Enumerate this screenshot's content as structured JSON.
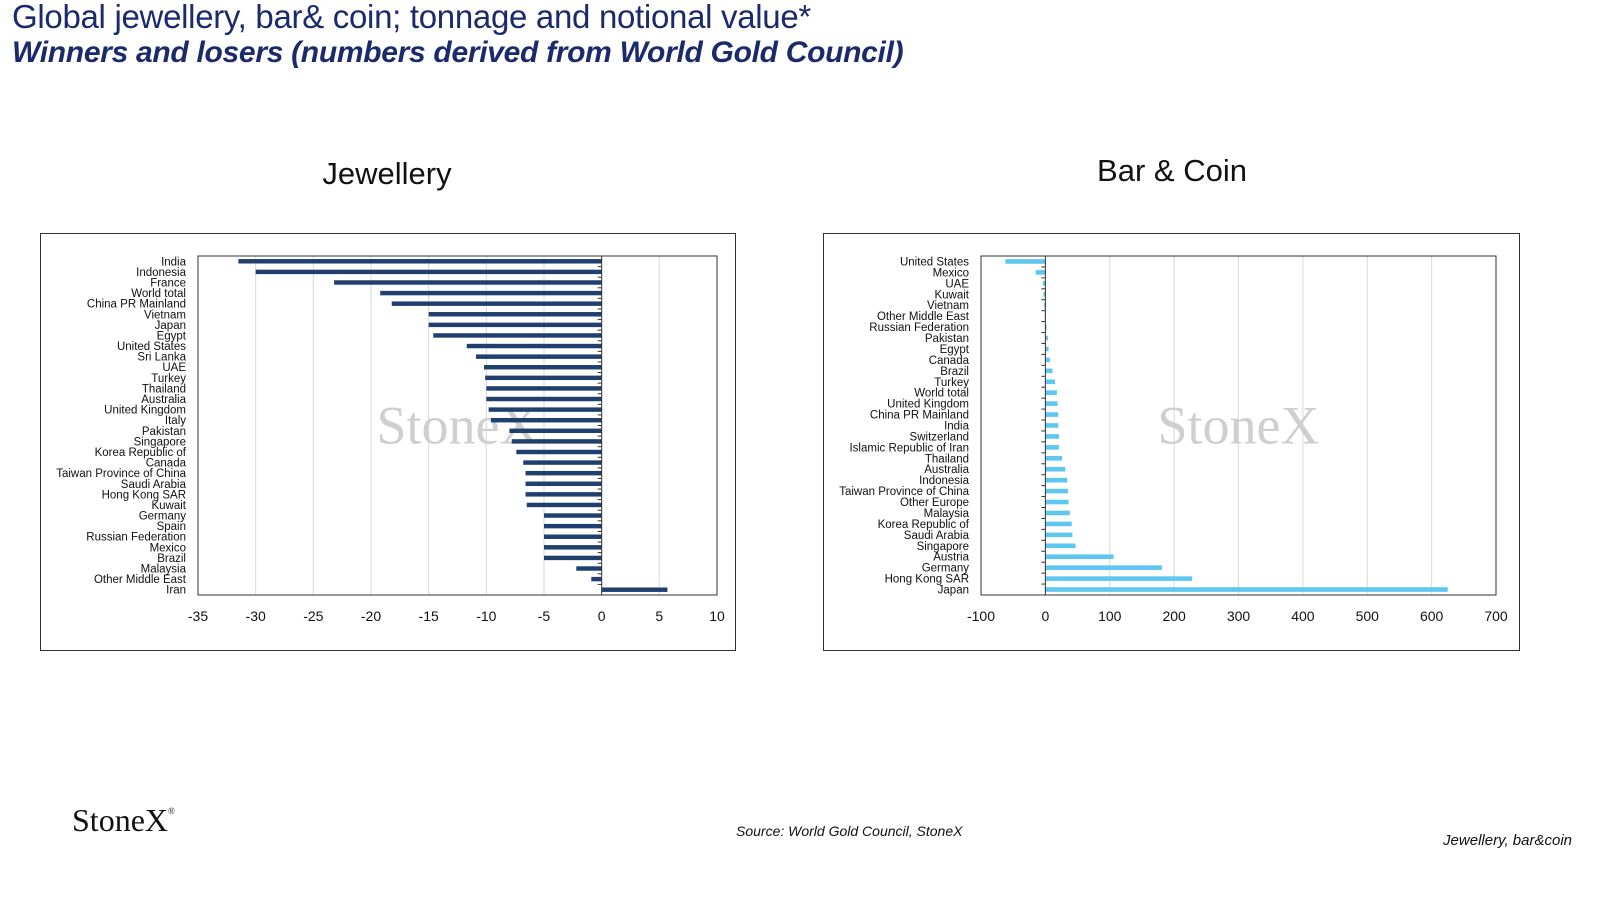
{
  "header": {
    "title": "Global jewellery, bar& coin; tonnage and notional value*",
    "subtitle": "Winners and losers (numbers derived from World Gold Council)"
  },
  "footer": {
    "logo_text": "StoneX",
    "logo_mark": "®",
    "source": "Source: World Gold Council, StoneX",
    "section": "Jewellery, bar&coin"
  },
  "watermark": "StoneX",
  "chart_data": [
    {
      "type": "bar",
      "orientation": "horizontal",
      "title": "Jewellery",
      "color": "#1f3f6e",
      "xlim": [
        -35,
        10
      ],
      "xticks": [
        -35,
        -30,
        -25,
        -20,
        -15,
        -10,
        -5,
        0,
        5,
        10
      ],
      "grid": true,
      "categories": [
        "India",
        "Indonesia",
        "France",
        "World total",
        "China PR Mainland",
        "Vietnam",
        "Japan",
        "Egypt",
        "United States",
        "Sri Lanka",
        "UAE",
        "Turkey",
        "Thailand",
        "Australia",
        "United Kingdom",
        "Italy",
        "Pakistan",
        "Singapore",
        "Korea Republic of",
        "Canada",
        "Taiwan Province of China",
        "Saudi Arabia",
        "Hong Kong SAR",
        "Kuwait",
        "Germany",
        "Spain",
        "Russian Federation",
        "Mexico",
        "Brazil",
        "Malaysia",
        "Other Middle East",
        "Iran"
      ],
      "values": [
        -31.5,
        -30,
        -23.2,
        -19.2,
        -18.2,
        -15,
        -15,
        -14.6,
        -11.7,
        -10.9,
        -10.2,
        -10.1,
        -10,
        -10,
        -9.8,
        -9.6,
        -8,
        -7.8,
        -7.4,
        -6.8,
        -6.6,
        -6.6,
        -6.6,
        -6.5,
        -5,
        -5,
        -5,
        -5,
        -5,
        -2.2,
        -0.9,
        5.7
      ]
    },
    {
      "type": "bar",
      "orientation": "horizontal",
      "title": "Bar & Coin",
      "color": "#5ec7ef",
      "xlim": [
        -100,
        700
      ],
      "xticks": [
        -100,
        0,
        100,
        200,
        300,
        400,
        500,
        600,
        700
      ],
      "grid": true,
      "categories": [
        "United States",
        "Mexico",
        "UAE",
        "Kuwait",
        "Vietnam",
        "Other Middle East",
        "Russian Federation",
        "Pakistan",
        "Egypt",
        "Canada",
        "Brazil",
        "Turkey",
        "World total",
        "United Kingdom",
        "China PR Mainland",
        "India",
        "Switzerland",
        "Islamic Republic of Iran",
        "Thailand",
        "Australia",
        "Indonesia",
        "Taiwan Province of China",
        "Other Europe",
        "Malaysia",
        "Korea Republic of",
        "Saudi Arabia",
        "Singapore",
        "Austria",
        "Germany",
        "Hong Kong SAR",
        "Japan"
      ],
      "values": [
        -62,
        -15,
        -4,
        -3,
        -2,
        -1,
        2,
        4,
        5,
        7,
        11,
        15,
        18,
        19,
        20,
        20,
        21,
        21,
        26,
        31,
        34,
        35,
        36,
        38,
        41,
        42,
        47,
        106,
        181,
        228,
        625
      ]
    }
  ]
}
